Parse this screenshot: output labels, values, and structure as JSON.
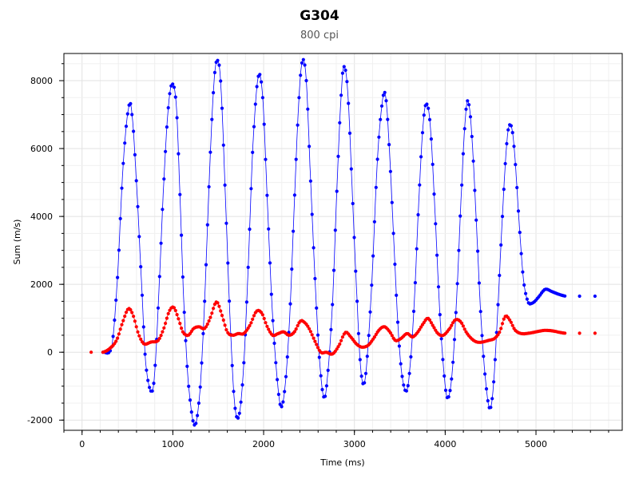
{
  "chart_data": {
    "type": "scatter",
    "title": "G304",
    "subtitle": "800 cpi",
    "xlabel": "Time (ms)",
    "ylabel": "Sum (m/s)",
    "xlim": [
      -200,
      5950
    ],
    "ylim": [
      -2300,
      8800
    ],
    "xticks": [
      0,
      1000,
      2000,
      3000,
      4000,
      5000
    ],
    "yticks": [
      -2000,
      0,
      2000,
      4000,
      6000,
      8000
    ],
    "grid": true,
    "series": [
      {
        "color": "#0000ff",
        "marker": "circle",
        "line": true,
        "start": 230,
        "interval": 16,
        "sparse_tail": [
          [
            5480,
            1650
          ],
          [
            5650,
            1650
          ]
        ],
        "keypoints": [
          [
            230,
            0
          ],
          [
            330,
            200
          ],
          [
            390,
            2200
          ],
          [
            450,
            5400
          ],
          [
            510,
            7150
          ],
          [
            550,
            7000
          ],
          [
            610,
            4500
          ],
          [
            660,
            1800
          ],
          [
            700,
            -300
          ],
          [
            760,
            -1150
          ],
          [
            800,
            -600
          ],
          [
            850,
            2000
          ],
          [
            900,
            5000
          ],
          [
            950,
            7200
          ],
          [
            995,
            7900
          ],
          [
            1040,
            7200
          ],
          [
            1080,
            4500
          ],
          [
            1120,
            1500
          ],
          [
            1170,
            -900
          ],
          [
            1240,
            -2150
          ],
          [
            1300,
            -1100
          ],
          [
            1350,
            1500
          ],
          [
            1400,
            5000
          ],
          [
            1450,
            7800
          ],
          [
            1490,
            8600
          ],
          [
            1530,
            7800
          ],
          [
            1580,
            4500
          ],
          [
            1630,
            1000
          ],
          [
            1680,
            -1500
          ],
          [
            1730,
            -1850
          ],
          [
            1780,
            -400
          ],
          [
            1830,
            2500
          ],
          [
            1880,
            6000
          ],
          [
            1940,
            8100
          ],
          [
            1990,
            7500
          ],
          [
            2040,
            4500
          ],
          [
            2090,
            1500
          ],
          [
            2140,
            -500
          ],
          [
            2190,
            -1600
          ],
          [
            2240,
            -900
          ],
          [
            2290,
            1200
          ],
          [
            2340,
            4500
          ],
          [
            2390,
            7500
          ],
          [
            2430,
            8600
          ],
          [
            2470,
            8000
          ],
          [
            2510,
            5500
          ],
          [
            2560,
            2500
          ],
          [
            2610,
            0
          ],
          [
            2660,
            -1300
          ],
          [
            2700,
            -800
          ],
          [
            2760,
            1500
          ],
          [
            2810,
            5000
          ],
          [
            2860,
            7800
          ],
          [
            2890,
            8400
          ],
          [
            2930,
            7500
          ],
          [
            2980,
            4500
          ],
          [
            3030,
            1500
          ],
          [
            3070,
            -500
          ],
          [
            3110,
            -900
          ],
          [
            3150,
            200
          ],
          [
            3200,
            2500
          ],
          [
            3250,
            5500
          ],
          [
            3300,
            7200
          ],
          [
            3340,
            7600
          ],
          [
            3380,
            6200
          ],
          [
            3430,
            3500
          ],
          [
            3480,
            800
          ],
          [
            3520,
            -600
          ],
          [
            3570,
            -1150
          ],
          [
            3610,
            -500
          ],
          [
            3660,
            1500
          ],
          [
            3710,
            4500
          ],
          [
            3760,
            6800
          ],
          [
            3800,
            7300
          ],
          [
            3840,
            6500
          ],
          [
            3890,
            4000
          ],
          [
            3940,
            1200
          ],
          [
            3990,
            -700
          ],
          [
            4030,
            -1350
          ],
          [
            4080,
            -500
          ],
          [
            4130,
            1800
          ],
          [
            4180,
            4800
          ],
          [
            4220,
            6800
          ],
          [
            4250,
            7400
          ],
          [
            4290,
            6500
          ],
          [
            4340,
            4000
          ],
          [
            4390,
            1200
          ],
          [
            4440,
            -700
          ],
          [
            4490,
            -1650
          ],
          [
            4530,
            -1000
          ],
          [
            4580,
            1300
          ],
          [
            4630,
            4000
          ],
          [
            4680,
            6200
          ],
          [
            4720,
            6700
          ],
          [
            4760,
            6000
          ],
          [
            4810,
            4000
          ],
          [
            4860,
            2200
          ],
          [
            4910,
            1500
          ],
          [
            4960,
            1450
          ],
          [
            5020,
            1600
          ],
          [
            5100,
            1850
          ],
          [
            5180,
            1780
          ],
          [
            5260,
            1700
          ],
          [
            5330,
            1650
          ]
        ]
      },
      {
        "color": "#ff0000",
        "marker": "circle",
        "line": true,
        "start": 230,
        "interval": 16,
        "sparse_tail": [
          [
            5480,
            560
          ],
          [
            5650,
            560
          ]
        ],
        "sparse_head": [
          [
            100,
            0
          ]
        ],
        "keypoints": [
          [
            230,
            0
          ],
          [
            300,
            100
          ],
          [
            380,
            350
          ],
          [
            450,
            900
          ],
          [
            510,
            1280
          ],
          [
            560,
            1100
          ],
          [
            620,
            550
          ],
          [
            680,
            250
          ],
          [
            760,
            300
          ],
          [
            840,
            350
          ],
          [
            900,
            700
          ],
          [
            960,
            1200
          ],
          [
            1010,
            1320
          ],
          [
            1060,
            1000
          ],
          [
            1110,
            600
          ],
          [
            1170,
            500
          ],
          [
            1230,
            700
          ],
          [
            1290,
            750
          ],
          [
            1350,
            700
          ],
          [
            1410,
            1000
          ],
          [
            1480,
            1480
          ],
          [
            1540,
            1100
          ],
          [
            1600,
            600
          ],
          [
            1660,
            500
          ],
          [
            1720,
            550
          ],
          [
            1780,
            550
          ],
          [
            1850,
            800
          ],
          [
            1920,
            1200
          ],
          [
            1980,
            1150
          ],
          [
            2040,
            750
          ],
          [
            2100,
            500
          ],
          [
            2160,
            550
          ],
          [
            2220,
            600
          ],
          [
            2280,
            500
          ],
          [
            2340,
            600
          ],
          [
            2400,
            900
          ],
          [
            2440,
            900
          ],
          [
            2500,
            700
          ],
          [
            2570,
            300
          ],
          [
            2630,
            0
          ],
          [
            2690,
            0
          ],
          [
            2760,
            -50
          ],
          [
            2830,
            200
          ],
          [
            2900,
            580
          ],
          [
            2960,
            450
          ],
          [
            3020,
            250
          ],
          [
            3080,
            150
          ],
          [
            3150,
            200
          ],
          [
            3210,
            400
          ],
          [
            3270,
            650
          ],
          [
            3330,
            750
          ],
          [
            3390,
            600
          ],
          [
            3450,
            350
          ],
          [
            3510,
            400
          ],
          [
            3580,
            550
          ],
          [
            3640,
            450
          ],
          [
            3700,
            600
          ],
          [
            3760,
            850
          ],
          [
            3810,
            1000
          ],
          [
            3860,
            800
          ],
          [
            3920,
            550
          ],
          [
            3980,
            500
          ],
          [
            4050,
            700
          ],
          [
            4110,
            950
          ],
          [
            4170,
            900
          ],
          [
            4230,
            600
          ],
          [
            4290,
            400
          ],
          [
            4350,
            300
          ],
          [
            4410,
            300
          ],
          [
            4480,
            350
          ],
          [
            4540,
            400
          ],
          [
            4600,
            600
          ],
          [
            4660,
            1050
          ],
          [
            4710,
            950
          ],
          [
            4770,
            650
          ],
          [
            4840,
            550
          ],
          [
            4920,
            560
          ],
          [
            5000,
            600
          ],
          [
            5080,
            640
          ],
          [
            5140,
            640
          ],
          [
            5200,
            620
          ],
          [
            5270,
            580
          ],
          [
            5330,
            560
          ]
        ]
      }
    ]
  }
}
